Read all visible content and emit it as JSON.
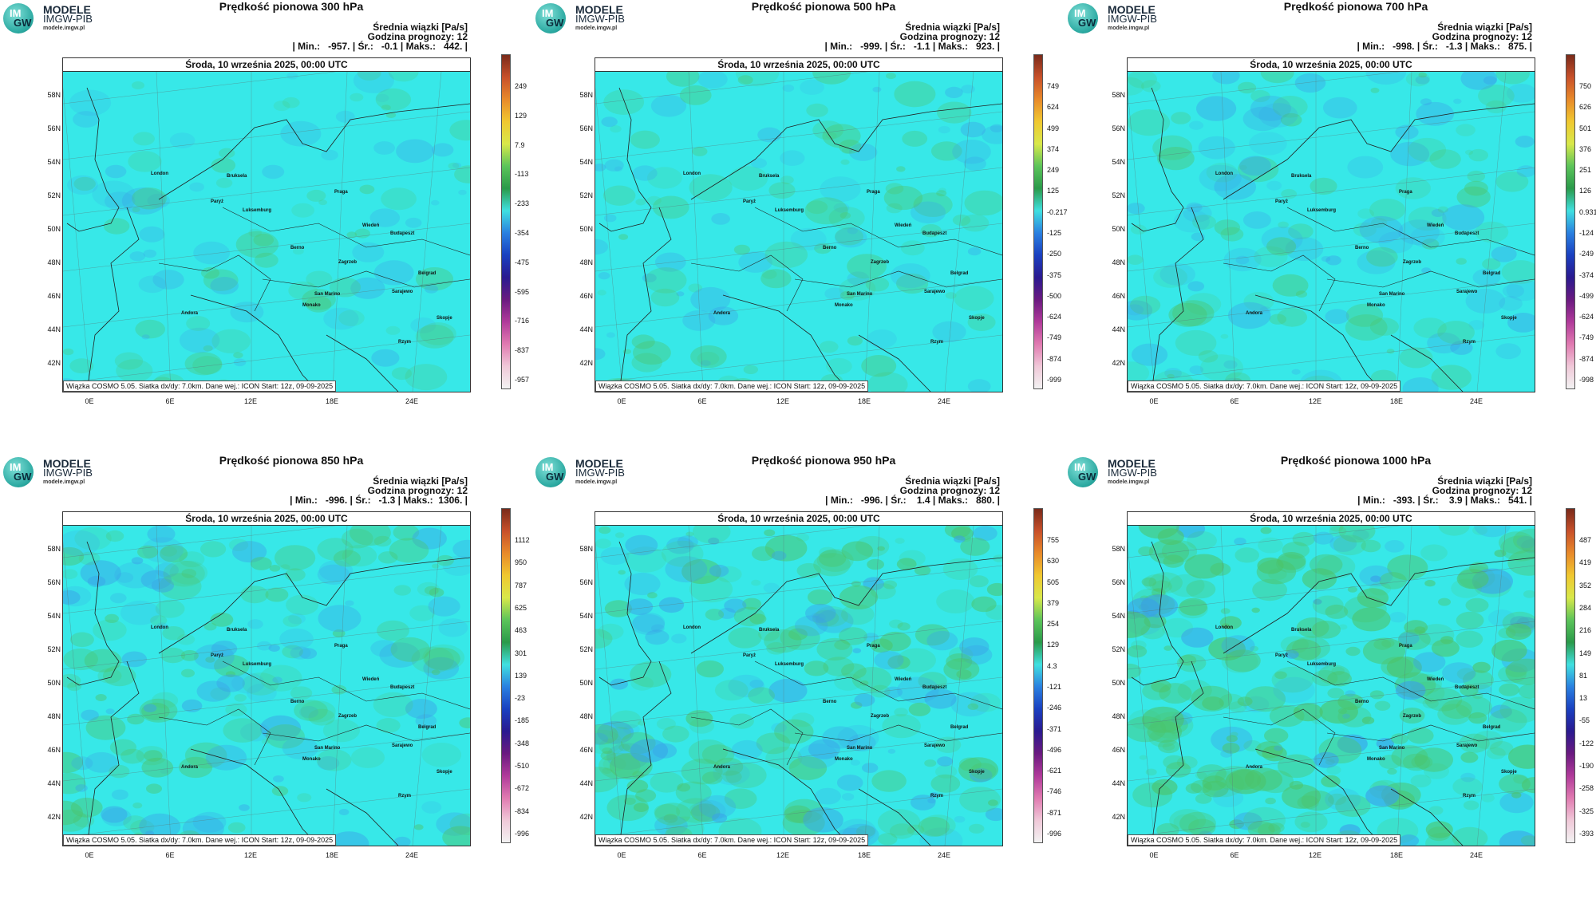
{
  "logo": {
    "line1": "MODELE",
    "line2": "IMGW-PIB",
    "line3": "modele.imgw.pl",
    "badge_top": "IM",
    "badge_bottom": "GW"
  },
  "common": {
    "info_line1": "Średnia wiązki [Pa/s]",
    "info_line2": "Godzina prognozy: 12",
    "date": "Środa, 10 września 2025, 00:00 UTC",
    "footer": "Wiązka COSMO 5.05. Siatka dx/dy: 7.0km. Dane wej.: ICON Start: 12z, 09-09-2025",
    "lat_labels": [
      "58N",
      "56N",
      "54N",
      "52N",
      "50N",
      "48N",
      "46N",
      "44N",
      "42N"
    ],
    "lon_labels": [
      "0E",
      "6E",
      "12E",
      "18E",
      "24E"
    ],
    "cities": [
      "London",
      "Bruksela",
      "Paryż",
      "Luksemburg",
      "Praga",
      "Wiedeń",
      "Budapeszt",
      "Berno",
      "Zagrzeb",
      "Belgrad",
      "San Marino",
      "Sarajewo",
      "Monako",
      "Andora",
      "Skopje",
      "Rzym"
    ]
  },
  "colors": {
    "field": "#37e8e8",
    "green": "#4cc46a",
    "blue": "#3aa0e8"
  },
  "panels": [
    {
      "title": "Prędkość pionowa 300 hPa",
      "stats": "| Min.:   -957. | Śr.:   -0.1 | Maks.:   442. |",
      "ticks": [
        "249",
        "129",
        "7.9",
        "-113",
        "-233",
        "-354",
        "-475",
        "-595",
        "-716",
        "-837",
        "-957"
      ],
      "activity": 0.1
    },
    {
      "title": "Prędkość pionowa 500 hPa",
      "stats": "| Min.:   -999. | Śr.:   -1.1 | Maks.:   923. |",
      "ticks": [
        "749",
        "624",
        "499",
        "374",
        "249",
        "125",
        "-0.217",
        "-125",
        "-250",
        "-375",
        "-500",
        "-624",
        "-749",
        "-874",
        "-999"
      ],
      "activity": 0.2
    },
    {
      "title": "Prędkość pionowa 700 hPa",
      "stats": "| Min.:   -998. | Śr.:   -1.3 | Maks.:   875. |",
      "ticks": [
        "750",
        "626",
        "501",
        "376",
        "251",
        "126",
        "0.931",
        "-124",
        "-249",
        "-374",
        "-499",
        "-624",
        "-749",
        "-874",
        "-998"
      ],
      "activity": 0.3
    },
    {
      "title": "Prędkość pionowa 850 hPa",
      "stats": "| Min.:   -996. | Śr.:   -1.3 | Maks.:  1306. |",
      "ticks": [
        "1112",
        "950",
        "787",
        "625",
        "463",
        "301",
        "139",
        "-23",
        "-185",
        "-348",
        "-510",
        "-672",
        "-834",
        "-996"
      ],
      "activity": 0.45
    },
    {
      "title": "Prędkość pionowa 950 hPa",
      "stats": "| Min.:   -996. | Śr.:    1.4 | Maks.:   880. |",
      "ticks": [
        "755",
        "630",
        "505",
        "379",
        "254",
        "129",
        "4.3",
        "-121",
        "-246",
        "-371",
        "-496",
        "-621",
        "-746",
        "-871",
        "-996"
      ],
      "activity": 0.65
    },
    {
      "title": "Prędkość pionowa 1000 hPa",
      "stats": "| Min.:   -393. | Śr.:    3.9 | Maks.:   541. |",
      "ticks": [
        "487",
        "419",
        "352",
        "284",
        "216",
        "149",
        "81",
        "13",
        "-55",
        "-122",
        "-190",
        "-258",
        "-325",
        "-393"
      ],
      "activity": 0.9
    }
  ]
}
